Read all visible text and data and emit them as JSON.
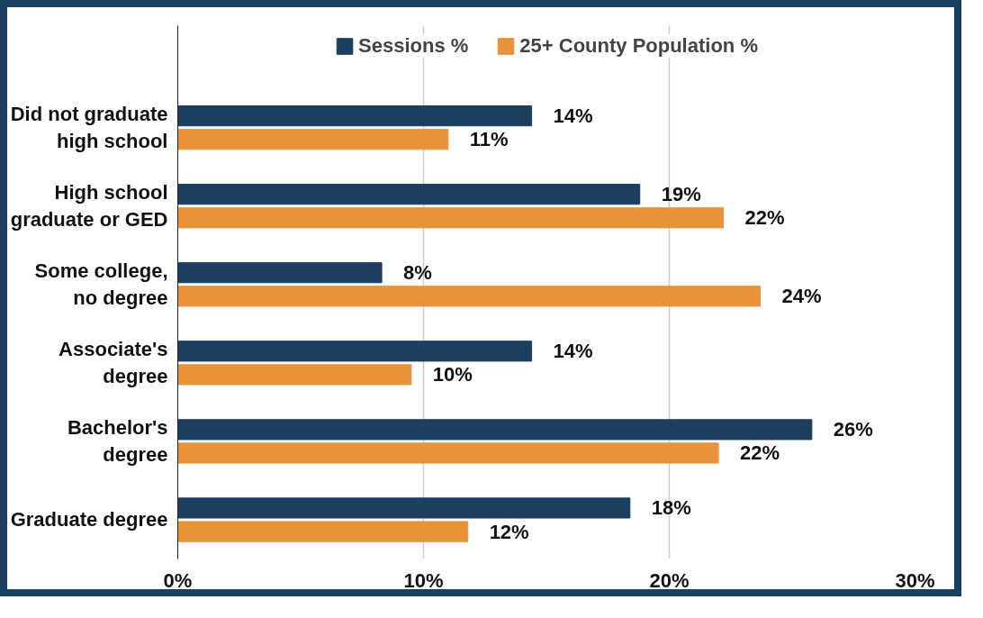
{
  "chart_data": {
    "type": "bar",
    "orientation": "horizontal",
    "categories": [
      "Did not graduate\nhigh school",
      "High school\ngraduate or GED",
      "Some college,\nno degree",
      "Associate's\ndegree",
      "Bachelor's\ndegree",
      "Graduate degree"
    ],
    "series": [
      {
        "name": "Sessions %",
        "color": "#1c3f60",
        "values": [
          14.4,
          18.8,
          8.3,
          14.4,
          25.8,
          18.4
        ],
        "value_labels": [
          "14%",
          "19%",
          "8%",
          "14%",
          "26%",
          "18%"
        ]
      },
      {
        "name": "25+ County Population %",
        "color": "#e8923a",
        "values": [
          11.0,
          22.2,
          23.7,
          9.5,
          22.0,
          11.8
        ],
        "value_labels": [
          "11%",
          "22%",
          "24%",
          "10%",
          "22%",
          "12%"
        ]
      }
    ],
    "xlim": [
      0,
      30
    ],
    "xticks": [
      {
        "value": 0,
        "label": "0%"
      },
      {
        "value": 10,
        "label": "10%"
      },
      {
        "value": 20,
        "label": "20%"
      },
      {
        "value": 30,
        "label": "30%"
      }
    ],
    "grid": "x",
    "legend": "top"
  }
}
